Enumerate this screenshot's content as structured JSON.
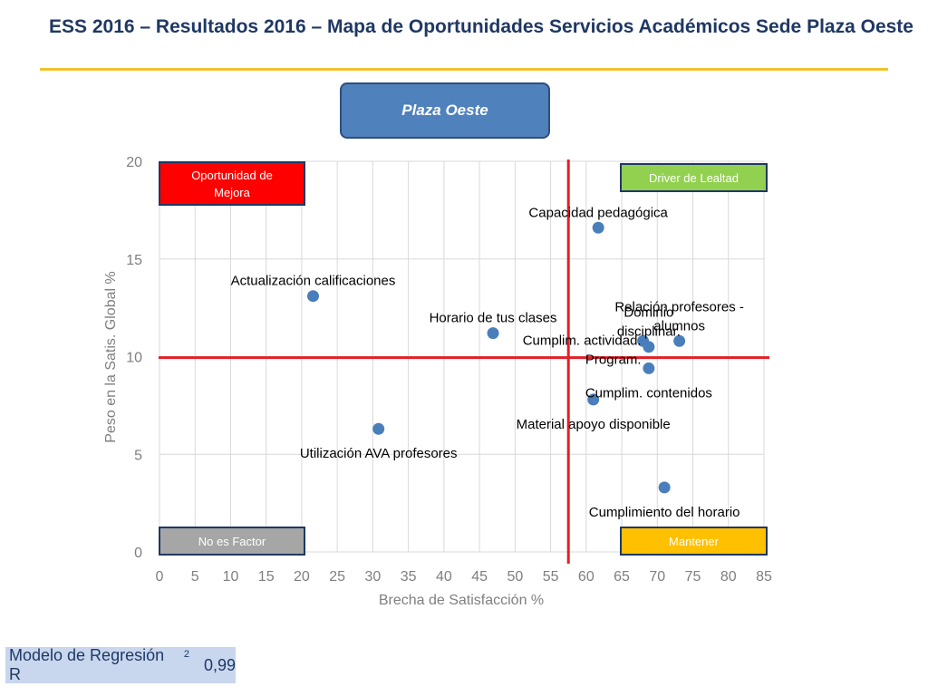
{
  "slide": {
    "title": "ESS 2016 – Resultados 2016 – Mapa de Oportunidades Servicios Académicos Sede Plaza Oeste",
    "region_button": "Plaza Oeste",
    "r2_label": "Modelo de Regresión R",
    "r2_superscript": "2",
    "r2_value": "0,99"
  },
  "chart_data": {
    "type": "scatter",
    "xlabel": "Brecha de Satisfacción %",
    "ylabel": "Peso en la Satis. Global %",
    "xlim": [
      0,
      85
    ],
    "ylim": [
      0,
      20
    ],
    "x_ticks": [
      0,
      5,
      10,
      15,
      20,
      25,
      30,
      35,
      40,
      45,
      50,
      55,
      60,
      65,
      70,
      75,
      80,
      85
    ],
    "y_ticks": [
      0,
      5,
      10,
      15,
      20
    ],
    "grid": true,
    "point_color": "#4a7ebb",
    "reference_lines": {
      "color": "#e31f26",
      "x": 57.5,
      "y": 9.95
    },
    "quadrants": [
      {
        "label": "Oportunidad de Mejora",
        "position": "top-left",
        "color": "#ff0000",
        "text_color": "#ffffff"
      },
      {
        "label": "Driver de Lealtad",
        "position": "top-right",
        "color": "#92d050",
        "text_color": "#ffffff"
      },
      {
        "label": "No es Factor",
        "position": "bottom-left",
        "color": "#a6a6a6",
        "text_color": "#ffffff"
      },
      {
        "label": "Mantener",
        "position": "bottom-right",
        "color": "#ffc000",
        "text_color": "#ffffff"
      }
    ],
    "points": [
      {
        "label": "Capacidad pedagógica",
        "x": 61.7,
        "y": 16.6,
        "label_pos": "above"
      },
      {
        "label": "Actualización calificaciones",
        "x": 21.6,
        "y": 13.1,
        "label_pos": "above"
      },
      {
        "label": "Horario de tus clases",
        "x": 46.9,
        "y": 11.2,
        "label_pos": "above"
      },
      {
        "label": "Dominio disciplinar.",
        "x": 68.8,
        "y": 10.5,
        "label_pos": "above"
      },
      {
        "label": "Cumplim. actividad. Program.",
        "x": 68.0,
        "y": 10.8,
        "label_pos": "left"
      },
      {
        "label": "Relación profesores - alumnos",
        "x": 73.1,
        "y": 10.8,
        "label_pos": "above"
      },
      {
        "label": "Cumplim. contenidos",
        "x": 68.8,
        "y": 9.4,
        "label_pos": "below"
      },
      {
        "label": "Material apoyo disponible",
        "x": 61.0,
        "y": 7.8,
        "label_pos": "below"
      },
      {
        "label": "Utilización AVA profesores",
        "x": 30.8,
        "y": 6.3,
        "label_pos": "below"
      },
      {
        "label": "Cumplimiento del horario",
        "x": 71.0,
        "y": 3.3,
        "label_pos": "below"
      }
    ]
  }
}
